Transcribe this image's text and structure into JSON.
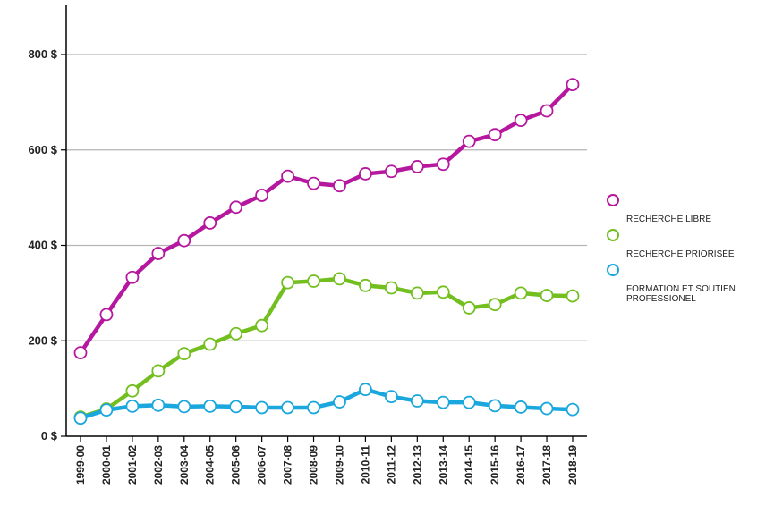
{
  "chart_data": {
    "type": "line",
    "title": "",
    "xlabel": "",
    "ylabel": "",
    "ylim": [
      0,
      900
    ],
    "y_ticks": [
      0,
      200,
      400,
      600,
      800
    ],
    "y_tick_labels": [
      "0 $",
      "200 $",
      "400 $",
      "600 $",
      "800 $"
    ],
    "grid": "horizontal",
    "legend_position": "right",
    "categories": [
      "1999-00",
      "2000-01",
      "2001-02",
      "2002-03",
      "2003-04",
      "2004-05",
      "2005-06",
      "2006-07",
      "2007-08",
      "2008-09",
      "2009-10",
      "2010-11",
      "2011-12",
      "2012-13",
      "2013-14",
      "2014-15",
      "2015-16",
      "2016-17",
      "2017-18",
      "2018-19"
    ],
    "series": [
      {
        "name": "RECHERCHE LIBRE",
        "color": "#b5179e",
        "values": [
          175,
          255,
          333,
          383,
          410,
          447,
          480,
          505,
          545,
          530,
          525,
          550,
          555,
          565,
          570,
          618,
          632,
          662,
          682,
          737
        ]
      },
      {
        "name": "RECHERCHE PRIORISÉE",
        "color": "#72bf1f",
        "values": [
          40,
          57,
          95,
          137,
          173,
          193,
          215,
          232,
          322,
          325,
          330,
          316,
          311,
          300,
          302,
          269,
          276,
          300,
          295,
          294
        ]
      },
      {
        "name": "FORMATION ET SOUTIEN\n PROFESSIONEL",
        "color": "#1aa7dd",
        "values": [
          38,
          55,
          63,
          65,
          62,
          63,
          62,
          60,
          60,
          60,
          72,
          98,
          83,
          74,
          71,
          71,
          64,
          61,
          58,
          56
        ]
      }
    ]
  }
}
